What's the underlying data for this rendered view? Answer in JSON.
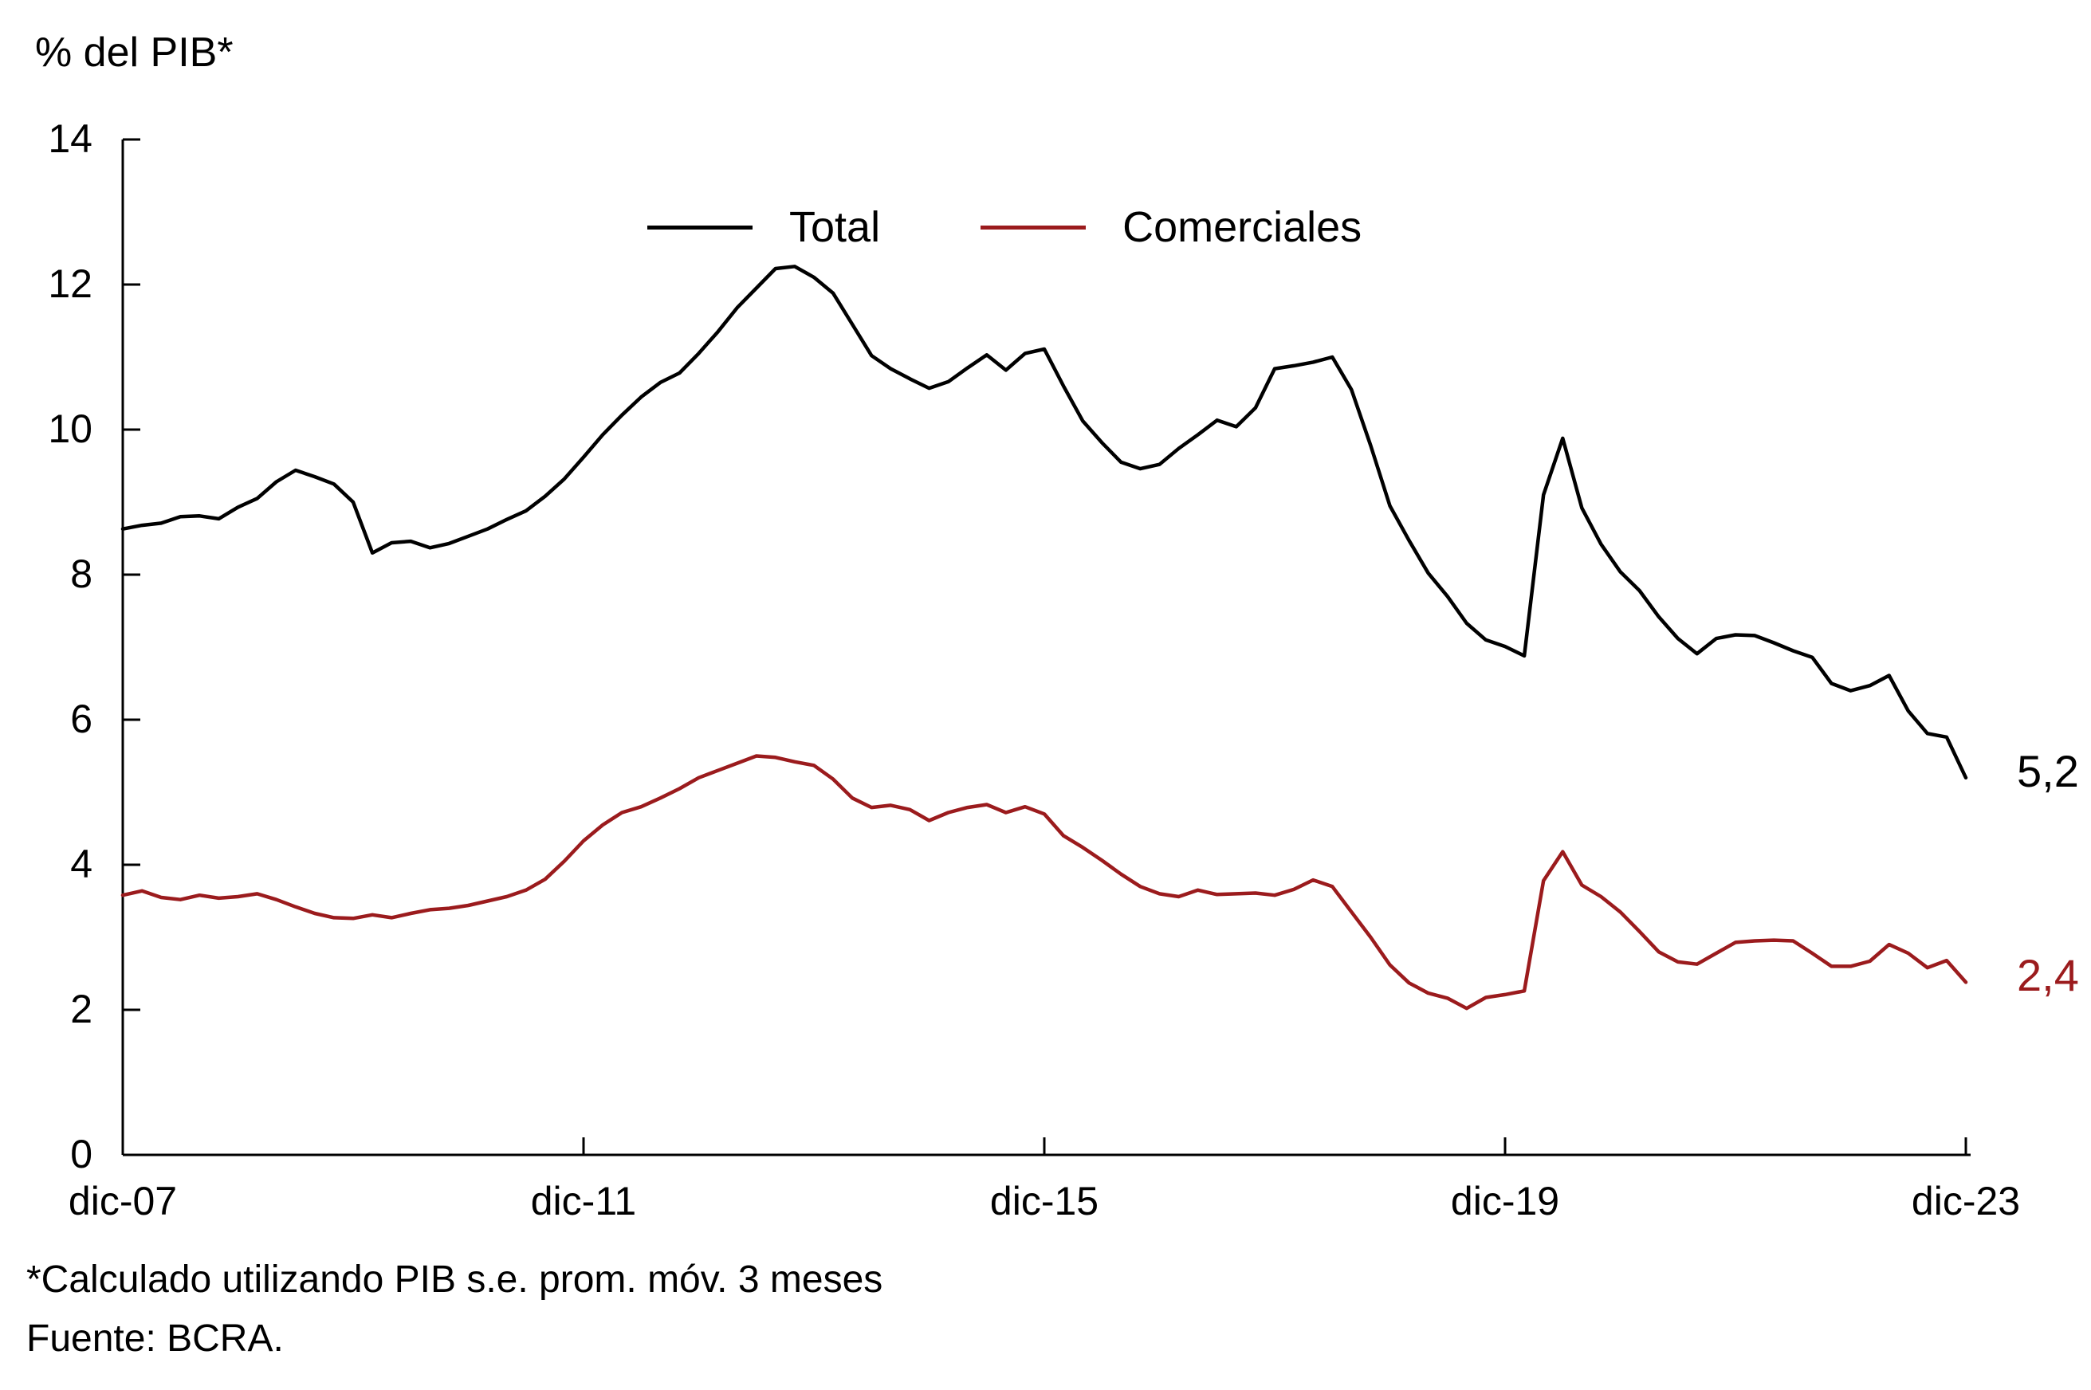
{
  "title": "% del PIB*",
  "legend": {
    "items": [
      {
        "label": "Total",
        "color": "#000000"
      },
      {
        "label": "Comerciales",
        "color": "#9B1B1D"
      }
    ]
  },
  "footnotes": {
    "line1": "*Calculado utilizando PIB s.e. prom. móv. 3 meses",
    "line2": "Fuente: BCRA."
  },
  "end_labels": {
    "total": {
      "text": "5,2",
      "color": "#000000",
      "value": 5.2
    },
    "comerciales": {
      "text": "2,4",
      "color": "#9B1B1D",
      "value": 2.4
    }
  },
  "colors": {
    "axis": "#000000",
    "total_line": "#000000",
    "comerciales_line": "#9B1B1D"
  },
  "chart_data": {
    "type": "line",
    "title": "% del PIB*",
    "xlabel": "",
    "ylabel": "% del PIB*",
    "ylim": [
      0,
      14
    ],
    "y_tick_values": [
      0,
      2,
      4,
      6,
      8,
      10,
      12,
      14
    ],
    "y_tick_labels": [
      "0",
      "2",
      "4",
      "6",
      "8",
      "10",
      "12",
      "14"
    ],
    "x_unit": "months since dic-2007",
    "x_range_months": [
      0,
      192
    ],
    "x_sample_step_months": 2,
    "x_tick_months": [
      0,
      48,
      96,
      144,
      192
    ],
    "x_tick_labels": [
      "dic-07",
      "dic-11",
      "dic-15",
      "dic-19",
      "dic-23"
    ],
    "grid": false,
    "legend_position": "top-center",
    "series": [
      {
        "name": "Total",
        "color": "#000000",
        "end_label": "5,2",
        "values": [
          8.63,
          8.68,
          8.71,
          8.8,
          8.81,
          8.77,
          8.93,
          9.05,
          9.28,
          9.44,
          9.35,
          9.25,
          9.0,
          8.3,
          8.44,
          8.46,
          8.37,
          8.43,
          8.53,
          8.63,
          8.76,
          8.88,
          9.08,
          9.32,
          9.62,
          9.93,
          10.2,
          10.45,
          10.65,
          10.78,
          11.05,
          11.35,
          11.68,
          11.95,
          12.22,
          12.25,
          12.1,
          11.88,
          11.45,
          11.02,
          10.84,
          10.7,
          10.57,
          10.66,
          10.85,
          11.03,
          10.82,
          11.05,
          11.11,
          10.6,
          10.12,
          9.82,
          9.55,
          9.46,
          9.52,
          9.74,
          9.93,
          10.13,
          10.04,
          10.3,
          10.84,
          10.88,
          10.93,
          11.0,
          10.55,
          9.78,
          8.95,
          8.47,
          8.02,
          7.7,
          7.33,
          7.1,
          7.01,
          6.88,
          9.1,
          9.88,
          8.92,
          8.42,
          8.04,
          7.78,
          7.42,
          7.12,
          6.91,
          7.12,
          7.17,
          7.16,
          7.06,
          6.95,
          6.86,
          6.5,
          6.4,
          6.47,
          6.61,
          6.12,
          5.81,
          5.76,
          5.2
        ]
      },
      {
        "name": "Comerciales",
        "color": "#9B1B1D",
        "end_label": "2,4",
        "values": [
          3.58,
          3.64,
          3.55,
          3.52,
          3.58,
          3.54,
          3.56,
          3.6,
          3.52,
          3.42,
          3.33,
          3.27,
          3.26,
          3.31,
          3.27,
          3.33,
          3.38,
          3.4,
          3.44,
          3.5,
          3.56,
          3.65,
          3.8,
          4.05,
          4.33,
          4.55,
          4.72,
          4.8,
          4.92,
          5.05,
          5.2,
          5.3,
          5.4,
          5.5,
          5.48,
          5.42,
          5.37,
          5.18,
          4.92,
          4.79,
          4.82,
          4.76,
          4.61,
          4.72,
          4.79,
          4.83,
          4.72,
          4.8,
          4.7,
          4.4,
          4.24,
          4.06,
          3.87,
          3.7,
          3.6,
          3.56,
          3.65,
          3.59,
          3.6,
          3.61,
          3.58,
          3.66,
          3.79,
          3.7,
          3.35,
          3.0,
          2.62,
          2.37,
          2.23,
          2.16,
          2.02,
          2.17,
          2.21,
          2.26,
          3.78,
          4.18,
          3.72,
          3.56,
          3.35,
          3.08,
          2.8,
          2.66,
          2.63,
          2.78,
          2.93,
          2.95,
          2.96,
          2.95,
          2.78,
          2.6,
          2.6,
          2.67,
          2.9,
          2.78,
          2.58,
          2.68,
          2.38
        ]
      }
    ]
  }
}
